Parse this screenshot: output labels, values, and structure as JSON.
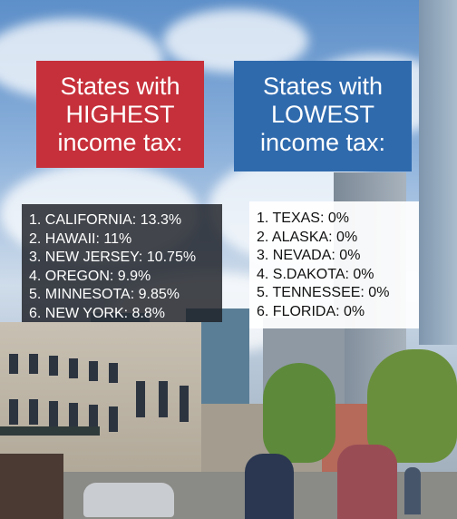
{
  "highest": {
    "title_lines": [
      "States with",
      "HIGHEST",
      "income tax:"
    ],
    "items": [
      "1. CALIFORNIA: 13.3%",
      "2. HAWAII: 11%",
      "3. NEW JERSEY: 10.75%",
      "4. OREGON: 9.9%",
      "5. MINNESOTA: 9.85%",
      "6. NEW YORK: 8.8%"
    ]
  },
  "lowest": {
    "title_lines": [
      "States with",
      "LOWEST",
      "income tax:"
    ],
    "items": [
      "1. TEXAS: 0%",
      "2. ALASKA: 0%",
      "3. NEVADA: 0%",
      "4. S.DAKOTA: 0%",
      "5. TENNESSEE: 0%",
      "6. FLORIDA: 0%"
    ]
  },
  "colors": {
    "highest_accent": "#c6303a",
    "lowest_accent": "#2f6aad"
  }
}
